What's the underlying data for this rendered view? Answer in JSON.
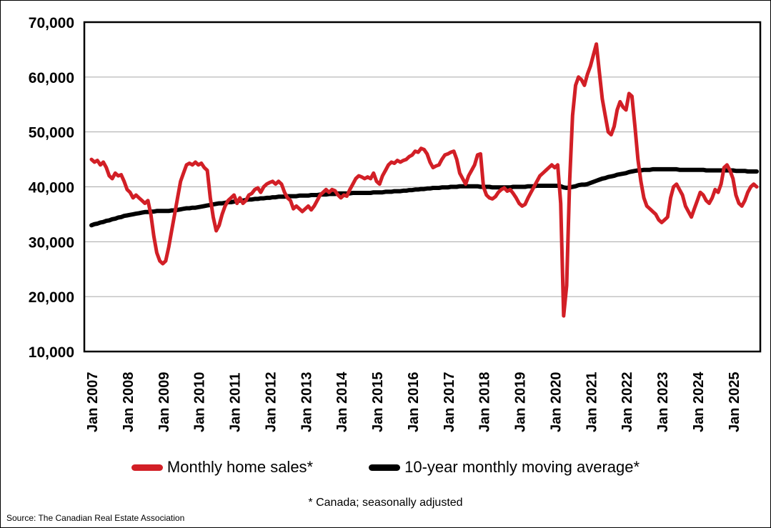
{
  "legend": {
    "items": [
      {
        "label": "Monthly home sales*"
      },
      {
        "label": "10-year monthly moving average*"
      }
    ]
  },
  "footnote": "* Canada; seasonally adjusted",
  "source": "Source: The Canadian Real Estate Association",
  "chart_data": {
    "type": "line",
    "x_interval": "monthly",
    "x_start": "Jan 2007",
    "x_end": "Sep 2025",
    "x_ticks": [
      "Jan 2007",
      "Jan 2008",
      "Jan 2009",
      "Jan 2010",
      "Jan 2011",
      "Jan 2012",
      "Jan 2013",
      "Jan 2014",
      "Jan 2015",
      "Jan 2016",
      "Jan 2017",
      "Jan 2018",
      "Jan 2019",
      "Jan 2020",
      "Jan 2021",
      "Jan 2022",
      "Jan 2023",
      "Jan 2024",
      "Jan 2025"
    ],
    "y_ticks": [
      {
        "value": 10000,
        "label": "10,000"
      },
      {
        "value": 20000,
        "label": "20,000"
      },
      {
        "value": 30000,
        "label": "30,000"
      },
      {
        "value": 40000,
        "label": "40,000"
      },
      {
        "value": 50000,
        "label": "50,000"
      },
      {
        "value": 60000,
        "label": "60,000"
      },
      {
        "value": 70000,
        "label": "70,000"
      }
    ],
    "ylim": [
      10000,
      70000
    ],
    "grid": "horizontal",
    "grid_color": "#a6a6a6",
    "legend_position": "bottom",
    "series": [
      {
        "name": "Monthly home sales*",
        "color": "#d21f26",
        "width": 5,
        "values": [
          45000,
          44500,
          44800,
          44000,
          44500,
          43500,
          42000,
          41500,
          42500,
          42000,
          42200,
          41000,
          39500,
          39000,
          38000,
          38500,
          38000,
          37500,
          37000,
          37500,
          35000,
          31000,
          28000,
          26500,
          26000,
          26500,
          29000,
          32000,
          35000,
          38000,
          41000,
          42500,
          44000,
          44300,
          44000,
          44500,
          44000,
          44300,
          43500,
          43000,
          38000,
          34500,
          32000,
          33000,
          35000,
          36500,
          37500,
          38000,
          38500,
          37000,
          38000,
          37000,
          37500,
          38500,
          38800,
          39500,
          39800,
          39000,
          40000,
          40500,
          40800,
          41000,
          40500,
          41000,
          40500,
          39000,
          38000,
          37500,
          36000,
          36500,
          36000,
          35500,
          36000,
          36500,
          35800,
          36500,
          37500,
          38500,
          39000,
          39500,
          39000,
          39500,
          39300,
          38500,
          38000,
          38500,
          38300,
          39500,
          40500,
          41500,
          42000,
          41800,
          41500,
          41800,
          41500,
          42500,
          41000,
          40500,
          42000,
          43000,
          44000,
          44500,
          44300,
          44800,
          44500,
          44800,
          45000,
          45500,
          45800,
          46500,
          46300,
          47000,
          46800,
          46000,
          44500,
          43500,
          43800,
          44000,
          45000,
          45800,
          46000,
          46300,
          46500,
          45000,
          42500,
          41500,
          40500,
          42000,
          43000,
          44000,
          45800,
          46000,
          40000,
          38500,
          38000,
          37800,
          38200,
          39000,
          39500,
          39800,
          39200,
          39500,
          38800,
          38000,
          37000,
          36500,
          36800,
          38000,
          39000,
          40000,
          41000,
          42000,
          42500,
          43000,
          43500,
          44000,
          43500,
          44000,
          37000,
          16500,
          22000,
          41000,
          53000,
          58500,
          60000,
          59500,
          58500,
          60500,
          62000,
          64000,
          66000,
          61000,
          56000,
          53000,
          50000,
          49500,
          51000,
          54000,
          55500,
          54500,
          54000,
          57000,
          56500,
          51000,
          45000,
          41000,
          38000,
          36500,
          36000,
          35500,
          35000,
          34000,
          33500,
          34000,
          34500,
          38000,
          40000,
          40500,
          39500,
          38500,
          36500,
          35500,
          34500,
          36000,
          37500,
          39000,
          38500,
          37500,
          37000,
          38000,
          39500,
          39000,
          40500,
          43500,
          44000,
          43000,
          41500,
          38500,
          37000,
          36500,
          37500,
          39000,
          40000,
          40500,
          40000
        ]
      },
      {
        "name": "10-year monthly moving average*",
        "color": "#000000",
        "width": 6,
        "values": [
          33000,
          33200,
          33300,
          33500,
          33600,
          33800,
          33900,
          34100,
          34200,
          34400,
          34500,
          34700,
          34800,
          34900,
          35000,
          35100,
          35200,
          35300,
          35400,
          35400,
          35500,
          35500,
          35600,
          35600,
          35600,
          35600,
          35600,
          35700,
          35700,
          35800,
          35900,
          36000,
          36100,
          36100,
          36200,
          36200,
          36300,
          36400,
          36500,
          36600,
          36700,
          36800,
          36900,
          37000,
          37000,
          37100,
          37200,
          37200,
          37300,
          37400,
          37500,
          37500,
          37600,
          37700,
          37700,
          37800,
          37800,
          37900,
          37900,
          38000,
          38000,
          38100,
          38100,
          38200,
          38200,
          38200,
          38300,
          38300,
          38300,
          38300,
          38400,
          38400,
          38400,
          38400,
          38500,
          38500,
          38500,
          38600,
          38600,
          38600,
          38700,
          38700,
          38700,
          38800,
          38800,
          38800,
          38800,
          38800,
          38900,
          38900,
          38900,
          38900,
          38900,
          38900,
          38900,
          39000,
          39000,
          39000,
          39000,
          39100,
          39100,
          39100,
          39200,
          39200,
          39200,
          39300,
          39300,
          39400,
          39400,
          39500,
          39500,
          39600,
          39600,
          39700,
          39700,
          39800,
          39800,
          39800,
          39900,
          39900,
          39900,
          40000,
          40000,
          40000,
          40100,
          40100,
          40100,
          40100,
          40100,
          40100,
          40100,
          40000,
          40000,
          40000,
          40000,
          39900,
          39900,
          39900,
          39900,
          39900,
          39900,
          39900,
          40000,
          40000,
          40000,
          40000,
          40000,
          40100,
          40100,
          40100,
          40200,
          40200,
          40200,
          40200,
          40200,
          40200,
          40200,
          40200,
          40100,
          39900,
          39800,
          39900,
          40000,
          40100,
          40300,
          40400,
          40400,
          40500,
          40700,
          40900,
          41100,
          41300,
          41500,
          41600,
          41800,
          41900,
          42000,
          42200,
          42300,
          42400,
          42500,
          42700,
          42800,
          42900,
          43000,
          43000,
          43100,
          43100,
          43100,
          43200,
          43200,
          43200,
          43200,
          43200,
          43200,
          43200,
          43200,
          43200,
          43100,
          43100,
          43100,
          43100,
          43100,
          43100,
          43100,
          43100,
          43100,
          43000,
          43000,
          43000,
          43000,
          43000,
          43000,
          43000,
          43000,
          43000,
          43000,
          42900,
          42900,
          42900,
          42900,
          42800,
          42800,
          42800,
          42800
        ]
      }
    ]
  }
}
